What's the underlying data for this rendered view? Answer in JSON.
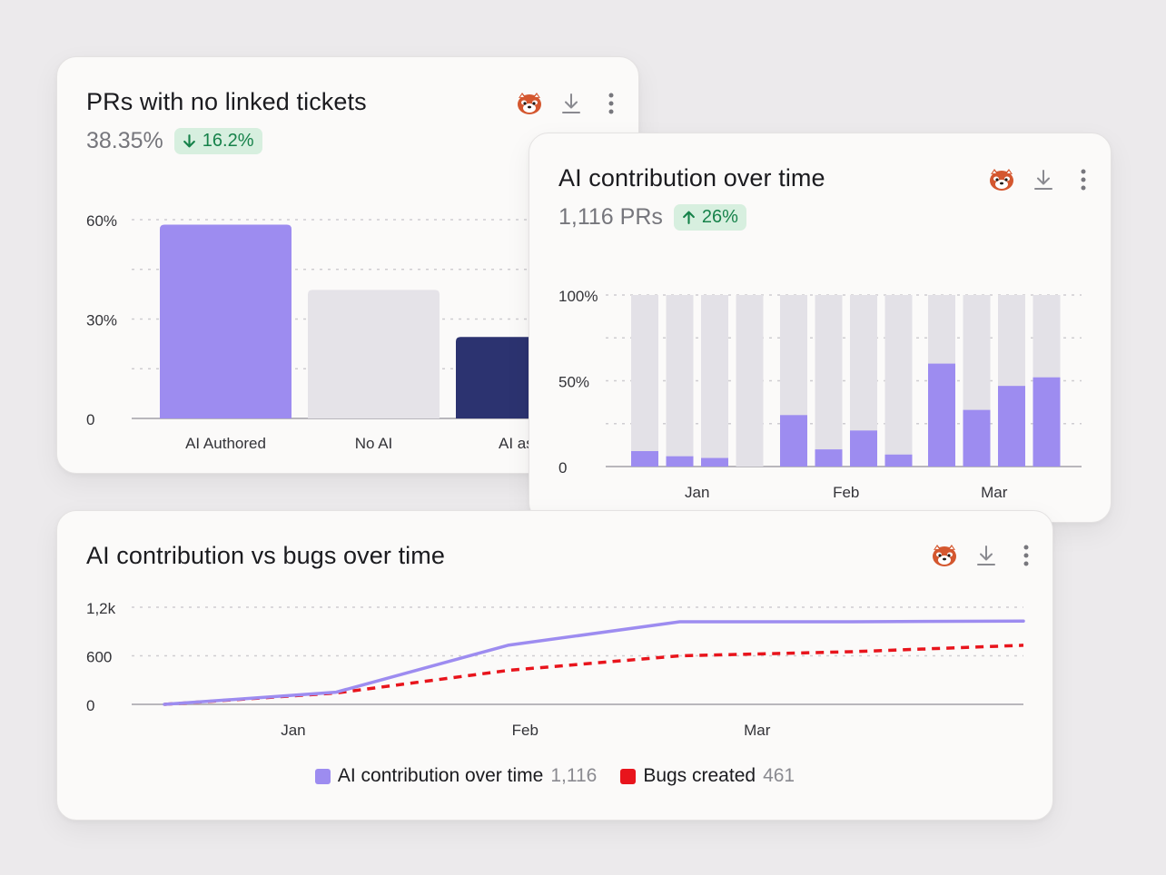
{
  "colors": {
    "ai": "#9d8cf0",
    "no_ai": "#e5e3e8",
    "assisted": "#2c3370",
    "bugs": "#e8141c",
    "stack_rest": "#e3e1e7",
    "positive": "#16824a",
    "grid": "#cfcdd1",
    "axis": "#b9b7bc",
    "tick_text": "#333338"
  },
  "cards": {
    "prs": {
      "title": "PRs with no linked tickets",
      "value": "38.35%",
      "delta": "16.2%",
      "delta_direction": "down"
    },
    "ai_time": {
      "title": "AI contribution over time",
      "value": "1,116 PRs",
      "delta": "26%",
      "delta_direction": "up"
    },
    "ai_bugs": {
      "title": "AI contribution vs bugs over time",
      "legend": [
        {
          "label": "AI contribution over time",
          "value": "1,116",
          "color": "#9d8cf0"
        },
        {
          "label": "Bugs created",
          "value": "461",
          "color": "#e8141c"
        }
      ]
    }
  },
  "icons": {
    "mascot": "red-panda-avatar-icon",
    "download": "download-icon",
    "more": "more-vertical-icon"
  },
  "chart_data": [
    {
      "id": "prs",
      "type": "bar",
      "title": "PRs with no linked tickets",
      "categories": [
        "AI Authored",
        "No AI",
        "AI assisted"
      ],
      "category_labels_visible": [
        "AI Authored",
        "No AI",
        "AI assi"
      ],
      "values": [
        58.5,
        38.8,
        24.6
      ],
      "ylim": [
        0,
        60
      ],
      "yticks": [
        0,
        30,
        60
      ],
      "ytick_labels": [
        "0",
        "30%",
        "60%"
      ],
      "grid": true,
      "xlabel": "",
      "ylabel": ""
    },
    {
      "id": "ai_time",
      "type": "bar",
      "stacked": true,
      "title": "AI contribution over time",
      "x_groups": [
        "Jan",
        "Feb",
        "Mar"
      ],
      "bars_per_group": 4,
      "ai_share_percent": [
        9,
        6,
        5,
        0,
        30,
        10,
        21,
        7,
        60,
        33,
        47,
        52
      ],
      "ylim": [
        0,
        100
      ],
      "yticks": [
        0,
        50,
        100
      ],
      "ytick_labels": [
        "0",
        "50%",
        "100%"
      ],
      "grid": true
    },
    {
      "id": "ai_bugs",
      "type": "line",
      "title": "AI contribution vs bugs over time",
      "x": [
        0,
        1,
        2,
        3,
        4,
        5
      ],
      "x_tick_labels": [
        "Jan",
        "Feb",
        "Mar"
      ],
      "x_tick_positions": [
        0.75,
        2.1,
        3.45
      ],
      "series": [
        {
          "name": "AI contribution over time",
          "style": "solid",
          "values": [
            0,
            150,
            730,
            1020,
            1020,
            1030
          ]
        },
        {
          "name": "Bugs created",
          "style": "dashed",
          "values": [
            0,
            140,
            420,
            600,
            650,
            730
          ]
        }
      ],
      "ylim": [
        0,
        1200
      ],
      "yticks": [
        0,
        600,
        1200
      ],
      "ytick_labels": [
        "0",
        "600",
        "1,2k"
      ],
      "grid": true
    }
  ]
}
